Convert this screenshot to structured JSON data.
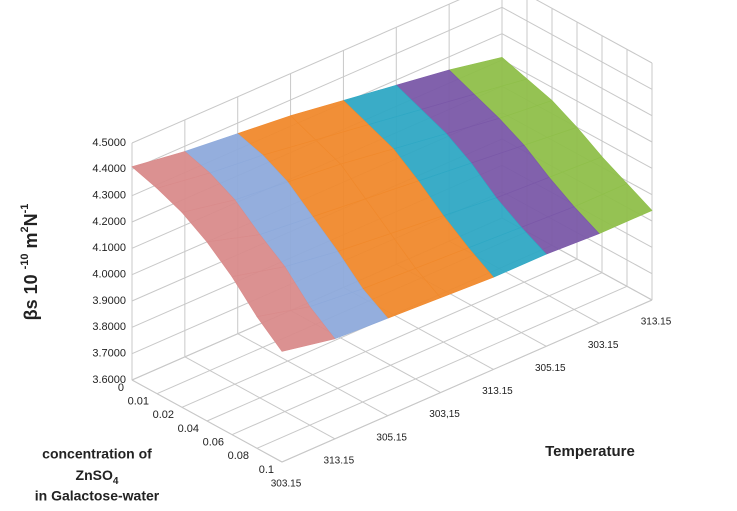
{
  "chart_data": {
    "type": "surface3d",
    "zlabel_parts": [
      "βs 10 ",
      "-10",
      " m",
      "2",
      "N",
      "-1"
    ],
    "ylabel_parts": [
      "concentration of",
      "ZnSO",
      "4",
      "in Galactose-water"
    ],
    "xlabel": "Temperature",
    "y_categories": [
      "0",
      "0.01",
      "0.02",
      "0.04",
      "0.06",
      "0.08",
      "0.1"
    ],
    "x_categories": [
      "303.15",
      "313.15",
      "305.15",
      "303,15",
      "313.15",
      "305.15",
      "303.15",
      "313.15"
    ],
    "zlim": [
      3.6,
      4.5
    ],
    "zticks": [
      {
        "value": 3.6,
        "label": "3.6000"
      },
      {
        "value": 3.7,
        "label": "3.7000"
      },
      {
        "value": 3.8,
        "label": "3.8000"
      },
      {
        "value": 3.9,
        "label": "3.9000"
      },
      {
        "value": 4.0,
        "label": "4.0000"
      },
      {
        "value": 4.1,
        "label": "4.1000"
      },
      {
        "value": 4.2,
        "label": "4.2000"
      },
      {
        "value": 4.3,
        "label": "4.3000"
      },
      {
        "value": 4.4,
        "label": "4.4000"
      },
      {
        "value": 4.5,
        "label": "4.5000"
      }
    ],
    "values": [
      [
        4.41,
        4.38,
        4.36,
        4.34,
        4.31,
        4.28,
        4.25,
        4.21
      ],
      [
        4.38,
        4.35,
        4.33,
        4.3,
        4.27,
        4.24,
        4.21,
        4.18
      ],
      [
        4.34,
        4.3,
        4.28,
        4.26,
        4.23,
        4.2,
        4.17,
        4.15
      ],
      [
        4.28,
        4.22,
        4.2,
        4.18,
        4.16,
        4.14,
        4.12,
        4.1
      ],
      [
        4.2,
        4.15,
        4.12,
        4.1,
        4.08,
        4.06,
        4.05,
        4.04
      ],
      [
        4.1,
        4.05,
        4.03,
        4.02,
        4.01,
        4.0,
        3.99,
        3.99
      ],
      [
        4.02,
        3.98,
        3.97,
        3.96,
        3.95,
        3.95,
        3.94,
        3.94
      ]
    ],
    "colors": [
      "#d98b8b",
      "#8eaadb",
      "#f0892c",
      "#f0892c",
      "#2fa8c4",
      "#7a58a8",
      "#8fbf4a"
    ],
    "grid": true
  }
}
